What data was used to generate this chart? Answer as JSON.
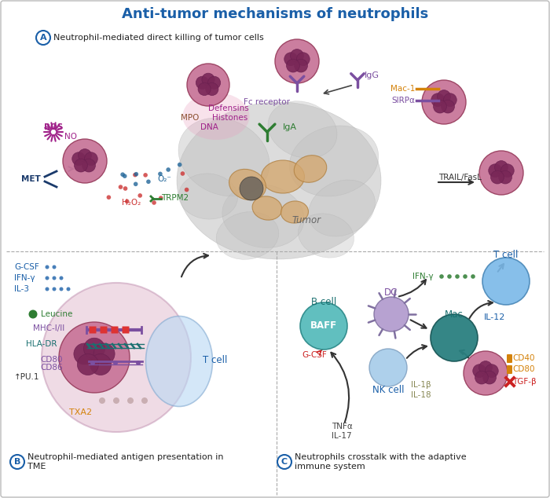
{
  "title": "Anti-tumor mechanisms of neutrophils",
  "title_color": "#1a5fa8",
  "bg_color": "#f5f5f5",
  "section_A_text": "Neutrophil-mediated direct killing of tumor cells",
  "section_B_text": "Neutrophil-mediated antigen presentation in\nTME",
  "section_C_text": "Neutrophils crosstalk with the adaptive\nimmune system",
  "colors": {
    "purple": "#7b4fa0",
    "green": "#2e7d32",
    "dark_teal": "#1a7070",
    "teal_mac": "#2a8080",
    "orange": "#d4820a",
    "red": "#cc2222",
    "blue": "#1a5fa8",
    "dark_blue": "#1a3a6b",
    "pink": "#c9779a",
    "dark_pink": "#9a4060",
    "nucleus_dark": "#7a2858",
    "nucleus_med": "#6a2050",
    "gray_tumor": "#c0c0c0",
    "beige_cell": "#d4a870",
    "light_blue_tcell": "#7ab8e8",
    "light_blue_nk": "#a0c8e8",
    "cyan_bcell": "#50b8b8",
    "lavender_dc": "#b098cc",
    "gray_text": "#555555",
    "brown": "#8B5030",
    "magenta": "#a0228a",
    "panel_div": "#aaaaaa",
    "border": "#bbbbbb"
  }
}
